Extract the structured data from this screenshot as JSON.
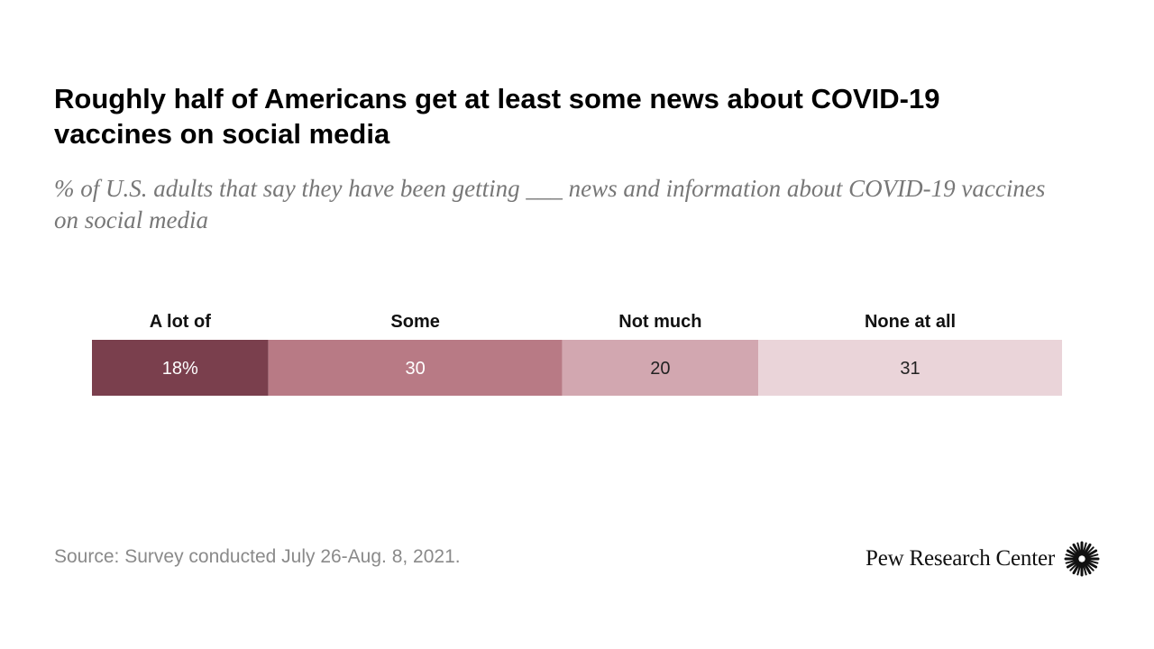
{
  "title": "Roughly half of Americans get at least some news about COVID-19 vaccines on social media",
  "subtitle": "% of U.S. adults that say they have been getting ___ news and information about COVID-19 vaccines on social media",
  "source": "Source: Survey conducted July 26-Aug. 8, 2021.",
  "logo_text": "Pew Research Center",
  "logo_icon": "pew-sunburst-icon",
  "chart_data": {
    "type": "bar",
    "orientation": "horizontal-stacked",
    "categories": [
      "A lot of",
      "Some",
      "Not much",
      "None at all"
    ],
    "values": [
      18,
      30,
      20,
      31
    ],
    "value_labels": [
      "18%",
      "30",
      "20",
      "31"
    ],
    "colors": [
      "#7a3f4d",
      "#b87a85",
      "#d2a7b0",
      "#ead4d9"
    ],
    "label_colors": [
      "#ffffff",
      "#ffffff",
      "#222222",
      "#222222"
    ],
    "total": 99
  }
}
